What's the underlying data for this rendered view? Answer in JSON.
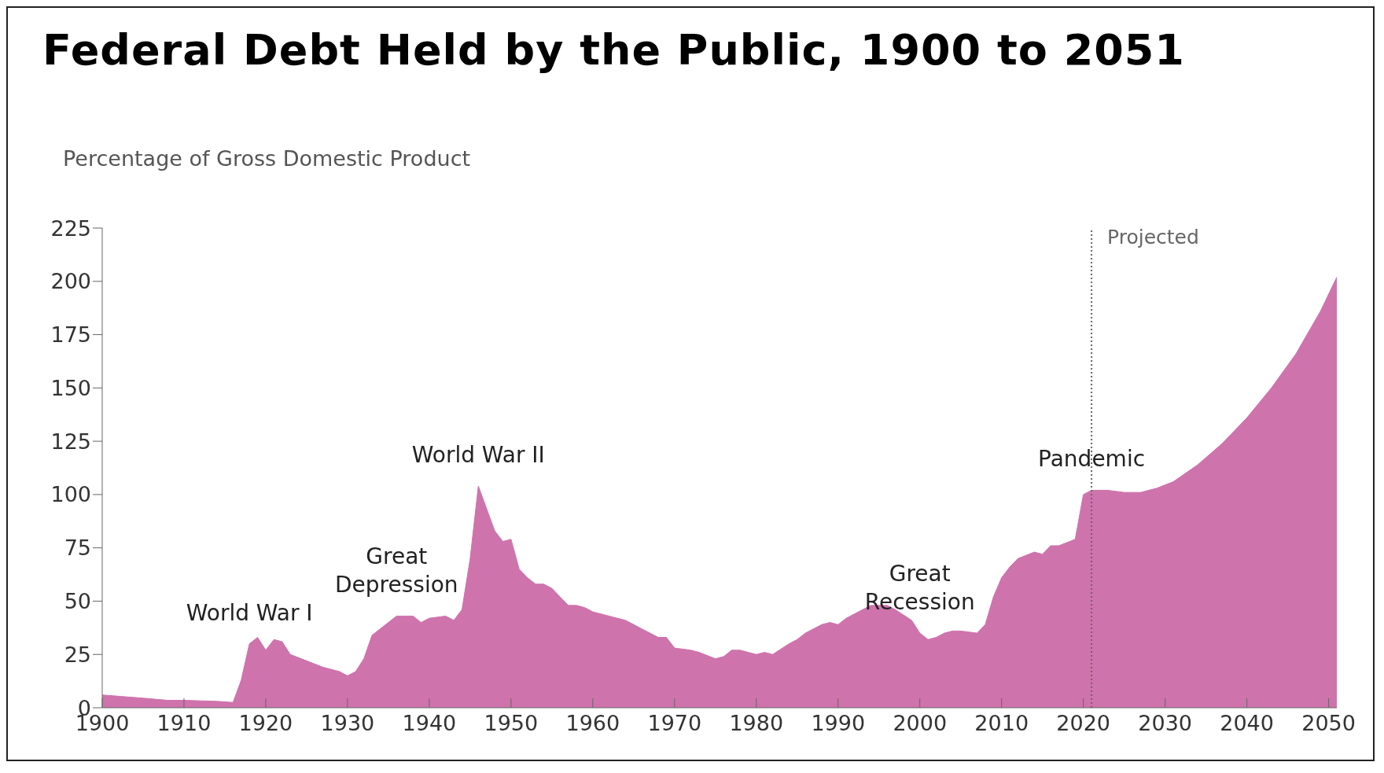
{
  "chart_data": {
    "type": "area",
    "title": "Federal Debt Held by the Public, 1900 to 2051",
    "ylabel": "Percentage of Gross Domestic Product",
    "x": [
      1900,
      1905,
      1908,
      1910,
      1914,
      1916,
      1917,
      1918,
      1919,
      1920,
      1921,
      1922,
      1923,
      1925,
      1927,
      1929,
      1930,
      1931,
      1932,
      1933,
      1935,
      1936,
      1938,
      1939,
      1940,
      1942,
      1943,
      1944,
      1945,
      1946,
      1948,
      1949,
      1950,
      1951,
      1952,
      1953,
      1954,
      1955,
      1956,
      1957,
      1958,
      1959,
      1960,
      1962,
      1964,
      1966,
      1968,
      1969,
      1970,
      1972,
      1973,
      1975,
      1976,
      1977,
      1978,
      1979,
      1980,
      1981,
      1982,
      1984,
      1985,
      1986,
      1988,
      1989,
      1990,
      1991,
      1993,
      1994,
      1996,
      1997,
      1999,
      2000,
      2001,
      2002,
      2003,
      2004,
      2005,
      2007,
      2008,
      2009,
      2010,
      2011,
      2012,
      2014,
      2015,
      2016,
      2017,
      2019,
      2020,
      2021,
      2023,
      2025,
      2027,
      2029,
      2031,
      2034,
      2037,
      2040,
      2043,
      2046,
      2049,
      2051
    ],
    "series": [
      {
        "color": "#cf73ac",
        "values": [
          6,
          4.5,
          3.5,
          3.5,
          3,
          2.5,
          13,
          30,
          33,
          27,
          32,
          31,
          25,
          22,
          19,
          17,
          15,
          17,
          23,
          34,
          40,
          43,
          43,
          40,
          42,
          43,
          41,
          46,
          70,
          104,
          83,
          78,
          79,
          65,
          61,
          58,
          58,
          56,
          52,
          48,
          48,
          47,
          45,
          43,
          41,
          37,
          33,
          33,
          28,
          27,
          26,
          23,
          24,
          27,
          27,
          26,
          25,
          26,
          25,
          30,
          32,
          35,
          39,
          40,
          39,
          42,
          46,
          48,
          48,
          46,
          41,
          35,
          32,
          33,
          35,
          36,
          36,
          35,
          39,
          52,
          61,
          66,
          70,
          73,
          72,
          76,
          76,
          79,
          100,
          102,
          102,
          101,
          101,
          103,
          106,
          114,
          124,
          136,
          150,
          166,
          186,
          202
        ]
      }
    ],
    "xlim": [
      1900,
      2051
    ],
    "xticks": [
      1900,
      1910,
      1920,
      1930,
      1940,
      1950,
      1960,
      1970,
      1980,
      1990,
      2000,
      2010,
      2020,
      2030,
      2040,
      2050
    ],
    "ylim": [
      0,
      225
    ],
    "yticks": [
      0,
      25,
      50,
      75,
      100,
      125,
      150,
      175,
      200,
      225
    ],
    "ref_lines": [
      {
        "axis": "x",
        "value": 2021,
        "label": "Projected",
        "color": "#666666",
        "line_style": "dotted"
      }
    ],
    "annotations": [
      {
        "text": "World War I",
        "x": 1918,
        "y": 30
      },
      {
        "text": "Great Depression",
        "x": 1936,
        "y": 43
      },
      {
        "text": "World War II",
        "x": 1946,
        "y": 104
      },
      {
        "text": "Great Recession",
        "x": 2000,
        "y": 35
      },
      {
        "text": "Pandemic",
        "x": 2021,
        "y": 102
      }
    ]
  }
}
